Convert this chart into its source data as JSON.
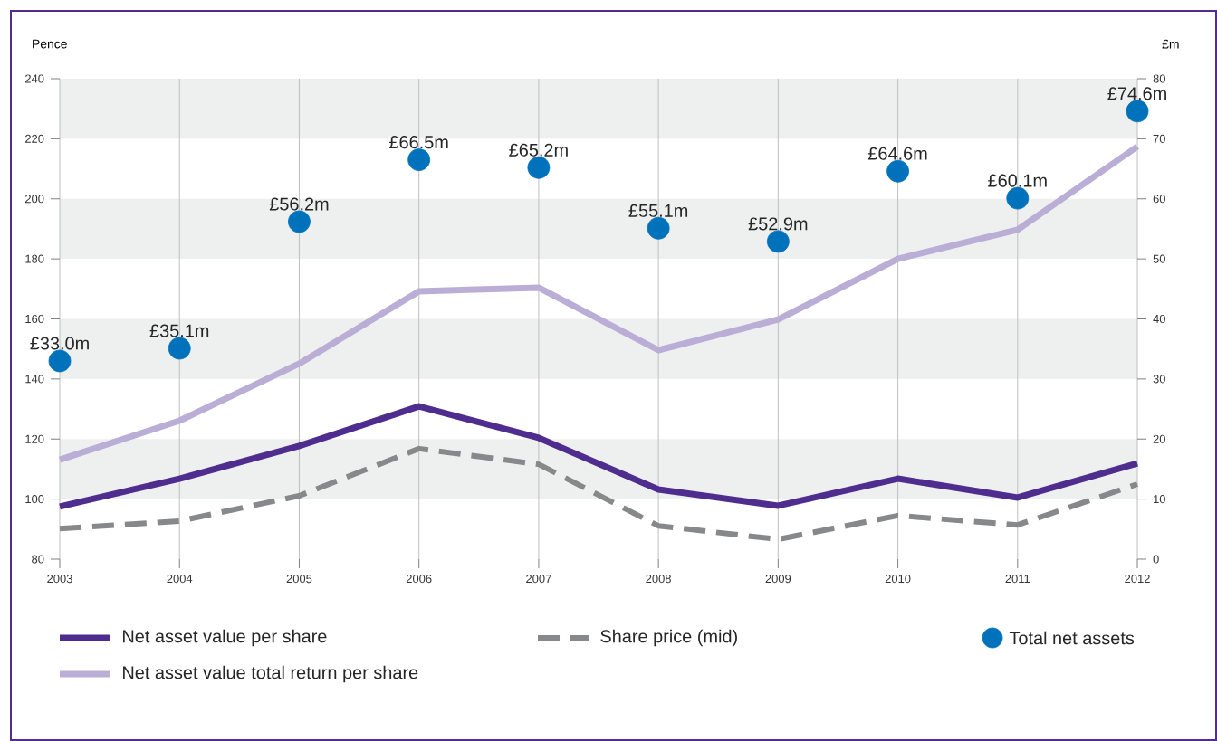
{
  "chart_data": {
    "type": "line",
    "categories": [
      "2003",
      "2004",
      "2005",
      "2006",
      "2007",
      "2008",
      "2009",
      "2010",
      "2011",
      "2012"
    ],
    "ylabel": "Pence",
    "y2label": "£m",
    "ylim": [
      80,
      240
    ],
    "yticks": [
      80,
      100,
      120,
      140,
      160,
      180,
      200,
      220,
      240
    ],
    "y2lim": [
      0,
      80
    ],
    "y2ticks": [
      0,
      10,
      20,
      30,
      40,
      50,
      60,
      70,
      80
    ],
    "grid": "x",
    "legend": "bottom",
    "bands": [
      {
        "axis": "y",
        "from": 100,
        "to": 120,
        "color": "#eef0ef"
      },
      {
        "axis": "y",
        "from": 140,
        "to": 160,
        "color": "#eef0ef"
      },
      {
        "axis": "y",
        "from": 180,
        "to": 200,
        "color": "#eef0ef"
      },
      {
        "axis": "y",
        "from": 220,
        "to": 240,
        "color": "#eef0ef"
      }
    ],
    "series": [
      {
        "name": "Net asset value per share",
        "color": "#4f2d8f",
        "line_style": "solid",
        "values": [
          97.5,
          106.8,
          117.7,
          130.9,
          120.4,
          103.2,
          97.8,
          106.8,
          100.5,
          111.9
        ]
      },
      {
        "name": "Net asset value total return per share",
        "color": "#bbaed6",
        "line_style": "solid",
        "values": [
          113.1,
          126.1,
          145.1,
          169.2,
          170.4,
          149.6,
          159.8,
          180.0,
          189.7,
          217.4
        ]
      },
      {
        "name": "Share price (mid)",
        "color": "#87888a",
        "line_style": "dashed",
        "values": [
          90.2,
          92.7,
          101.1,
          116.8,
          111.6,
          91.1,
          86.6,
          94.5,
          91.4,
          105.0
        ]
      },
      {
        "name": "Total net assets",
        "type": "scatter",
        "axis": "y2",
        "marker": "circle",
        "color": "#0072bc",
        "values": [
          33.0,
          35.1,
          56.2,
          66.5,
          65.2,
          55.1,
          52.9,
          64.6,
          60.1,
          74.6
        ],
        "value_labels": [
          "£33.0m",
          "£35.1m",
          "£56.2m",
          "£66.5m",
          "£65.2m",
          "£55.1m",
          "£52.9m",
          "£64.6m",
          "£60.1m",
          "£74.6m"
        ]
      }
    ]
  }
}
